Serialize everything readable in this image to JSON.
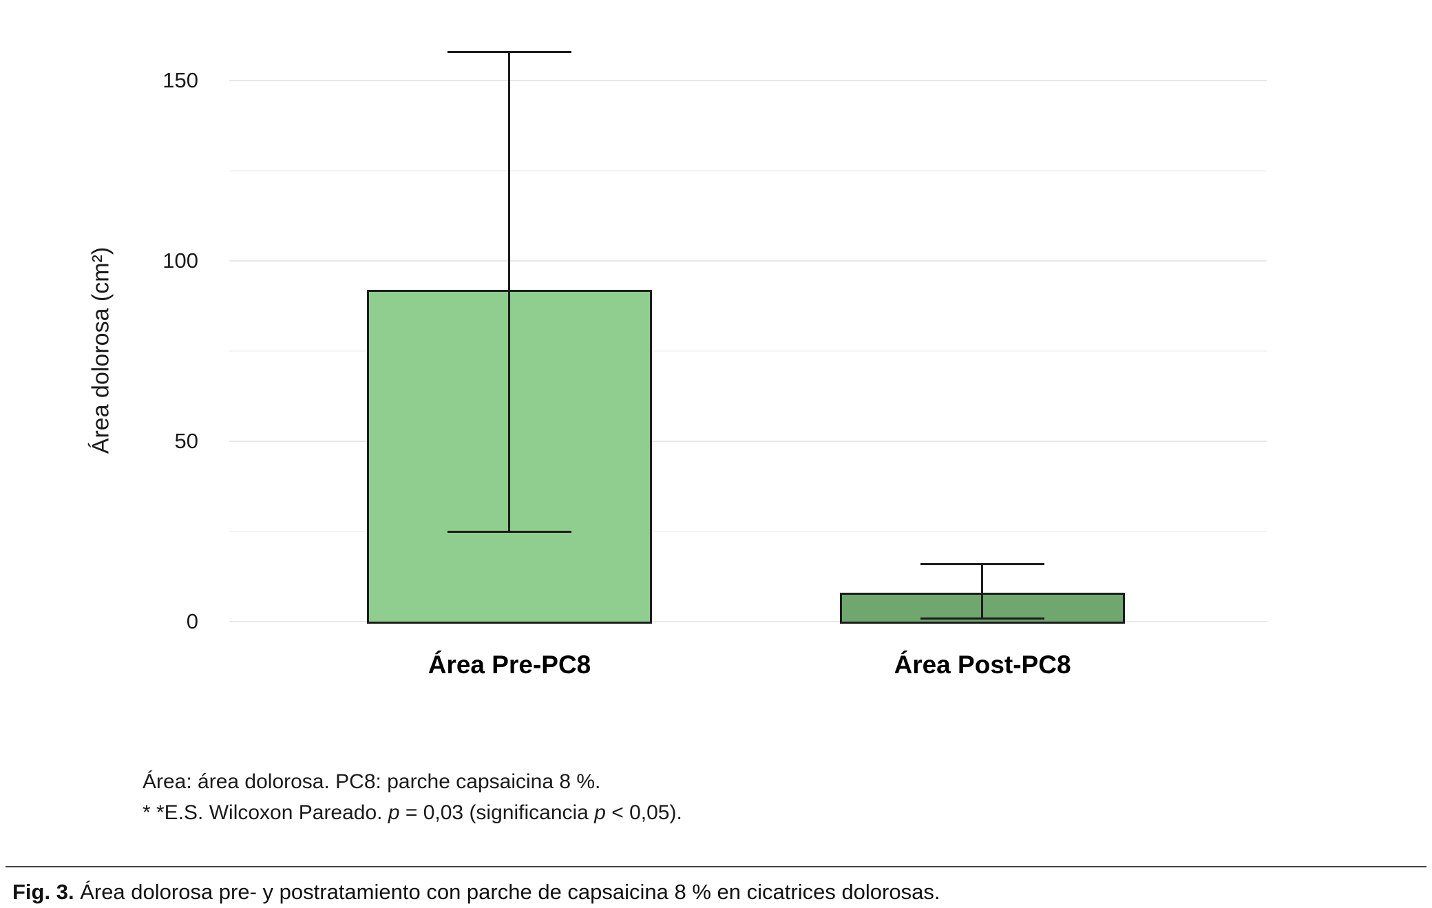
{
  "chart_data": {
    "type": "bar",
    "title": "",
    "xlabel": "",
    "ylabel": "Área dolorosa (cm²)",
    "categories": [
      "Área Pre-PC8",
      "Área Post-PC8"
    ],
    "values": [
      92,
      8
    ],
    "error_bars": [
      {
        "low": 25,
        "high": 158
      },
      {
        "low": 1,
        "high": 16
      }
    ],
    "bar_colors": [
      "#8fce8e",
      "#6fa76e"
    ],
    "bar_edge_color": "#1c1c1c",
    "ylim": [
      0,
      160
    ],
    "yticks": [
      0,
      50,
      100,
      150
    ],
    "minor_gridlines": [
      25,
      75,
      125
    ],
    "grid": true,
    "legend": false
  },
  "notes": {
    "line1": "Área: área dolorosa. PC8: parche capsaicina 8 %.",
    "line2": {
      "part1": "* *E.S. Wilcoxon Pareado. ",
      "p1": "p",
      "part2": " = 0,03 (significancia ",
      "p2": "p",
      "part3": " < 0,05)."
    }
  },
  "caption": {
    "label": "Fig. 3.",
    "text": " Área dolorosa pre- y postratamiento con parche de capsaicina 8 % en cicatrices dolorosas."
  }
}
